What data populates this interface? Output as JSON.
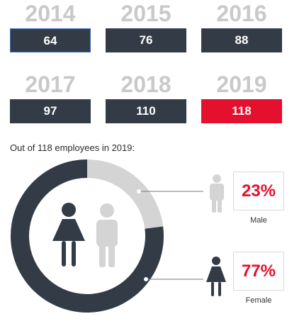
{
  "chart_data": [
    {
      "type": "bar",
      "categories": [
        "2014",
        "2015",
        "2016",
        "2017",
        "2018",
        "2019"
      ],
      "values": [
        64,
        76,
        88,
        97,
        110,
        118
      ],
      "highlight_category": "2019",
      "colors": {
        "bar": "#333c46",
        "highlight": "#e4102e",
        "year_label": "#c9c9c9"
      }
    },
    {
      "type": "pie",
      "title": "Out of 118 employees in 2019:",
      "labels": [
        "Male",
        "Female"
      ],
      "values": [
        23,
        77
      ],
      "value_labels": [
        "23%",
        "77%"
      ],
      "colors": {
        "Male": "#d4d4d4",
        "Female": "#333c46",
        "percent_text": "#e4102e"
      }
    }
  ],
  "icons": {
    "center_female": "female-person-icon",
    "center_male": "male-person-icon",
    "male_legend": "male-person-icon",
    "female_legend": "female-person-icon"
  }
}
